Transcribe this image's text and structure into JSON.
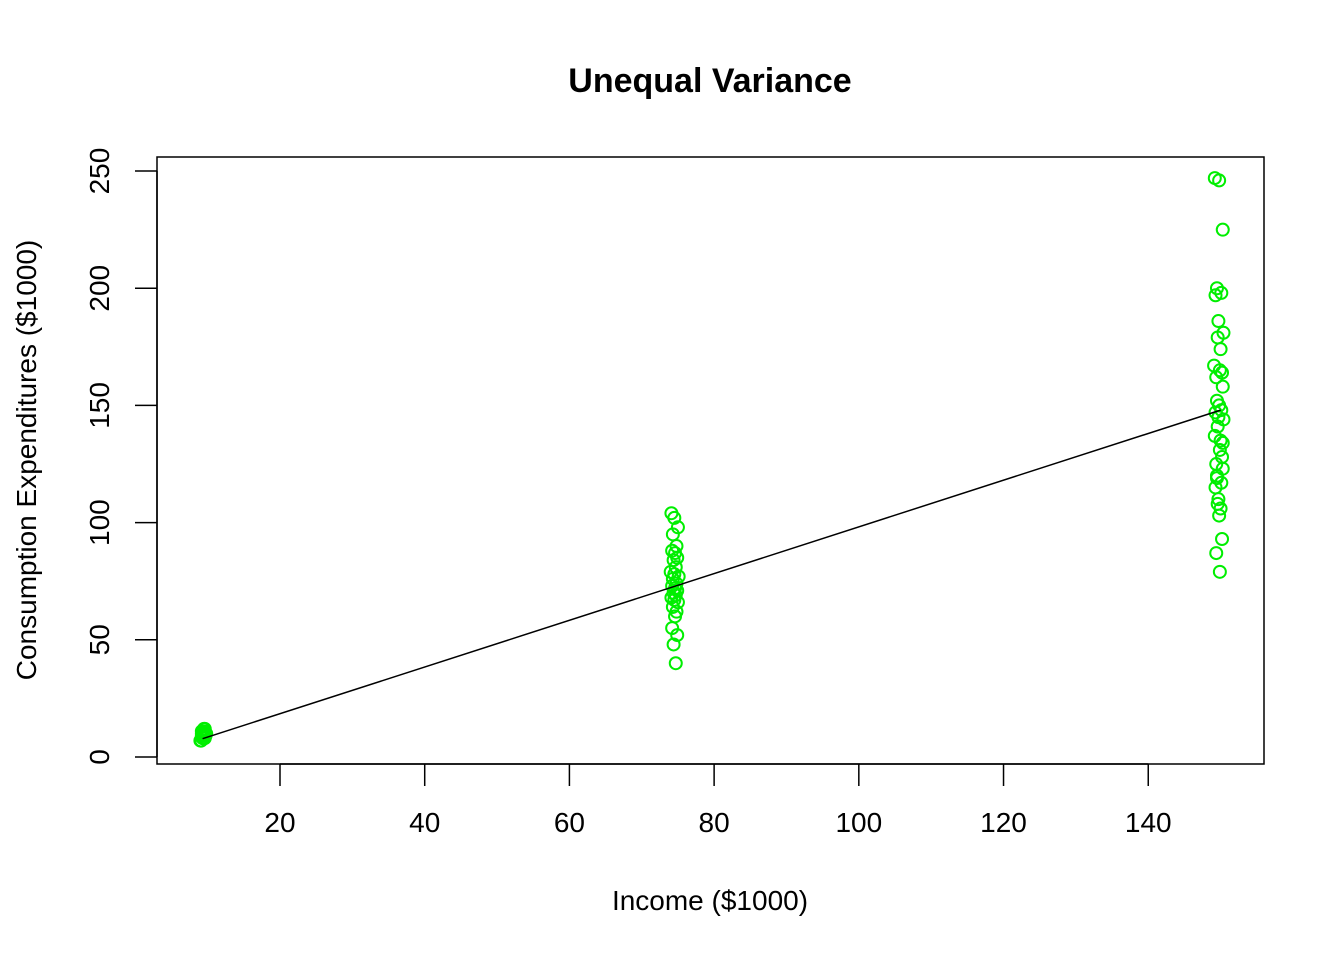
{
  "chart_data": {
    "type": "scatter",
    "title": "Unequal Variance",
    "xlabel": "Income ($1000)",
    "ylabel": "Consumption Expenditures ($1000)",
    "xlim": [
      3,
      156
    ],
    "ylim": [
      -3,
      256
    ],
    "x_ticks": [
      20,
      40,
      60,
      80,
      100,
      120,
      140
    ],
    "y_ticks": [
      0,
      50,
      100,
      150,
      200,
      250
    ],
    "grid": false,
    "point_color": "#00EE00",
    "line_color": "#000000",
    "fit_line": {
      "x": [
        9.3,
        150
      ],
      "y": [
        7.8,
        148
      ]
    },
    "series": [
      {
        "x": [
          9.1,
          9.3,
          9.5,
          9.2,
          9.6,
          9.4,
          9.0,
          9.7,
          9.3,
          9.5,
          9.2,
          9.6,
          9.4,
          9.1,
          9.8,
          9.3,
          9.5,
          9.2,
          9.6,
          9.4,
          74.1,
          74.5,
          75.0,
          74.3,
          74.8,
          74.2,
          74.6,
          74.9,
          74.4,
          74.7,
          74.0,
          74.5,
          75.1,
          74.3,
          74.8,
          74.2,
          74.6,
          74.9,
          74.4,
          74.7,
          74.1,
          74.5,
          75.0,
          74.3,
          74.8,
          74.6,
          74.2,
          74.9,
          74.4,
          74.7,
          149.2,
          149.8,
          150.3,
          149.5,
          150.1,
          149.3,
          149.7,
          150.4,
          149.6,
          150.0,
          149.1,
          149.9,
          150.2,
          149.4,
          150.3,
          149.5,
          149.8,
          150.1,
          149.3,
          149.7,
          150.4,
          149.6,
          149.2,
          150.0,
          149.9,
          150.2,
          149.4,
          150.3,
          149.5,
          150.1,
          149.3,
          149.7,
          149.6,
          150.0,
          149.8,
          150.2,
          149.4,
          149.9,
          150.3,
          149.5
        ],
        "y": [
          7,
          8,
          9,
          10,
          11,
          8,
          7,
          9,
          10,
          12,
          11,
          8,
          9,
          7,
          10,
          11,
          8,
          9,
          12,
          10,
          104,
          102,
          98,
          95,
          90,
          88,
          87,
          85,
          84,
          81,
          79,
          78,
          77,
          76,
          74,
          73,
          72,
          71,
          70,
          69,
          68,
          67,
          66,
          64,
          62,
          60,
          55,
          52,
          48,
          40,
          247,
          246,
          225,
          200,
          198,
          197,
          186,
          181,
          179,
          174,
          167,
          165,
          164,
          162,
          158,
          152,
          150,
          148,
          147,
          145,
          144,
          141,
          137,
          135,
          131,
          128,
          125,
          123,
          120,
          117,
          115,
          110,
          108,
          106,
          103,
          93,
          87,
          79,
          134,
          119
        ]
      }
    ]
  }
}
